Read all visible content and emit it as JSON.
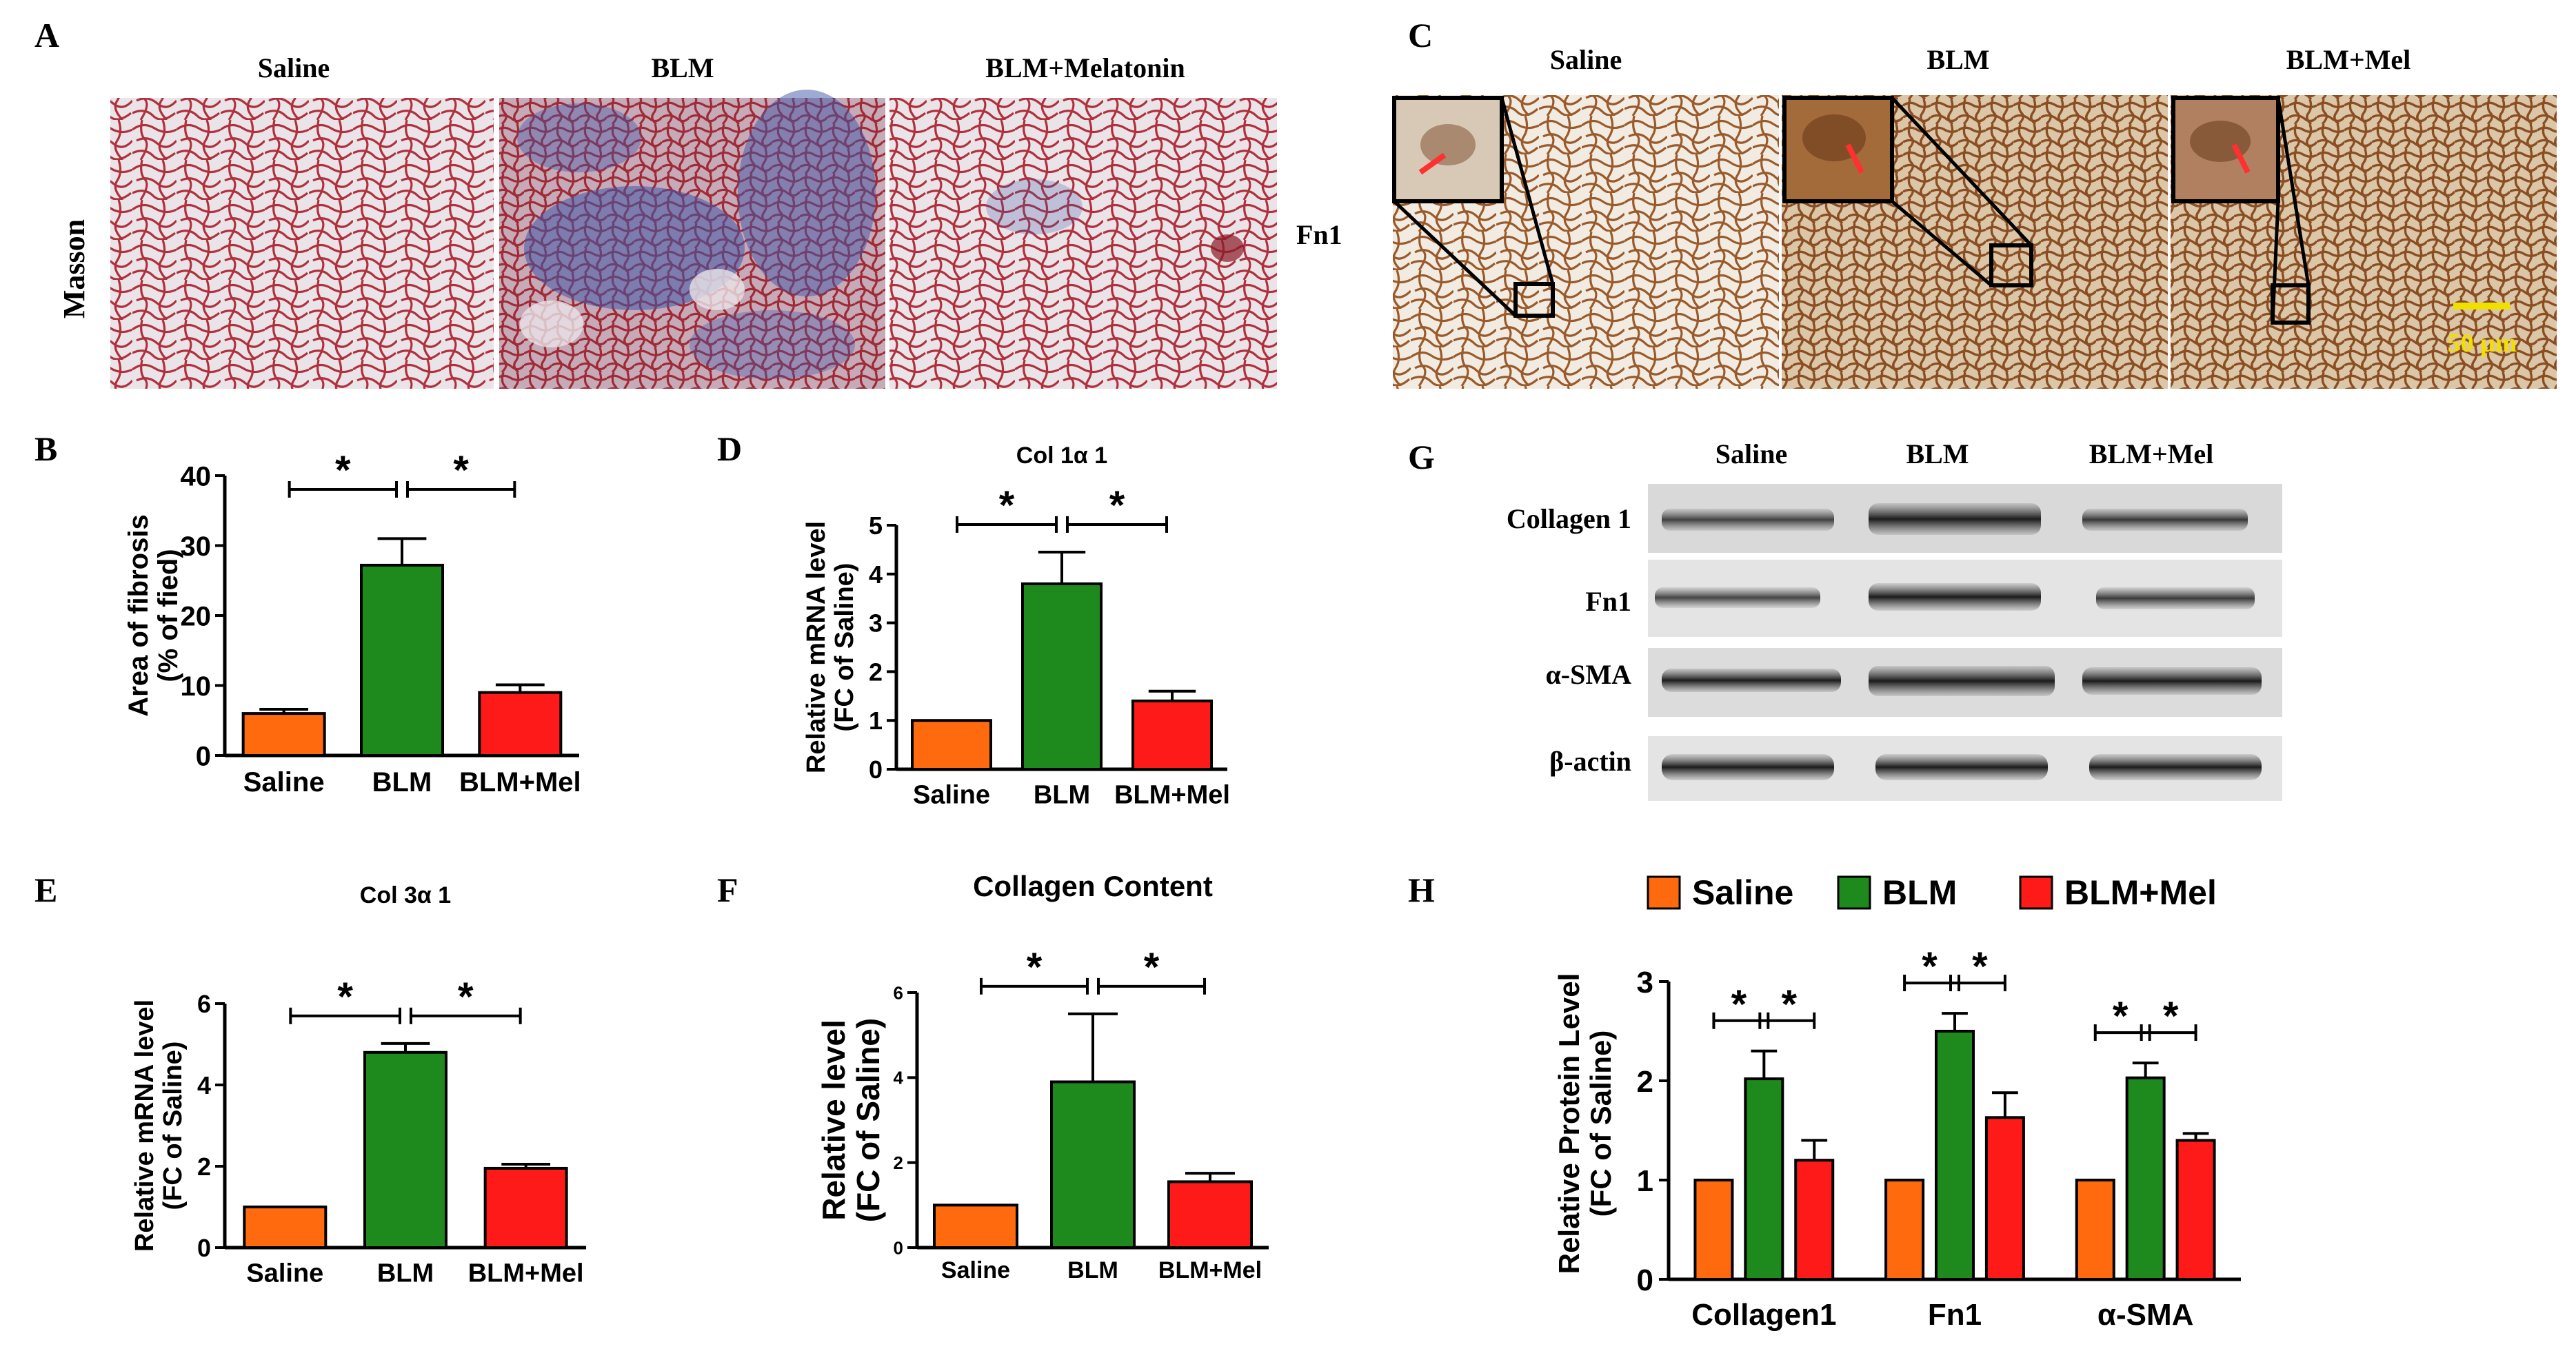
{
  "colors": {
    "saline": "#ff6a0e",
    "blm": "#1e8a1e",
    "blm_mel": "#ff1a1a",
    "masson_bg": "#eae3e8",
    "masson_tissue": "#b0313c",
    "masson_fibrosis": "#3f56a8",
    "ihc_bg": "#f1ebe2",
    "ihc_tissue": "#9a5a2a",
    "scalebar": "#f0e000"
  },
  "panel_a": {
    "letter": "A",
    "row_label": "Masson",
    "columns": [
      "Saline",
      "BLM",
      "BLM+Melatonin"
    ]
  },
  "panel_c": {
    "letter": "C",
    "row_label": "Fn1",
    "columns": [
      "Saline",
      "BLM",
      "BLM+Mel"
    ],
    "scale_bar": "50 μm"
  },
  "panel_g": {
    "letter": "G",
    "columns": [
      "Saline",
      "BLM",
      "BLM+Mel"
    ],
    "rows": [
      "Collagen 1",
      "Fn1",
      "α-SMA",
      "β-actin"
    ]
  },
  "chart_data": [
    {
      "panel": "B",
      "type": "bar",
      "title": "",
      "categories": [
        "Saline",
        "BLM",
        "BLM+Mel"
      ],
      "values": [
        6,
        27.2,
        9
      ],
      "errors": [
        0.6,
        3.8,
        1.1
      ],
      "ylabel": "Area of fibrosis\n(% of fied)",
      "ylim": [
        0,
        40
      ],
      "yticks": [
        0,
        10,
        20,
        30,
        40
      ],
      "significance": [
        "*",
        "*"
      ]
    },
    {
      "panel": "D",
      "type": "bar",
      "title": "Col 1α 1",
      "categories": [
        "Saline",
        "BLM",
        "BLM+Mel"
      ],
      "values": [
        1,
        3.8,
        1.4
      ],
      "errors": [
        0,
        0.65,
        0.2
      ],
      "ylabel": "Relative mRNA level\n(FC of Saline)",
      "ylim": [
        0,
        5
      ],
      "yticks": [
        0,
        1,
        2,
        3,
        4,
        5
      ],
      "significance": [
        "*",
        "*"
      ]
    },
    {
      "panel": "E",
      "type": "bar",
      "title": "Col 3α 1",
      "categories": [
        "Saline",
        "BLM",
        "BLM+Mel"
      ],
      "values": [
        1,
        4.8,
        1.95
      ],
      "errors": [
        0,
        0.22,
        0.1
      ],
      "ylabel": "Relative mRNA level\n(FC of Saline)",
      "ylim": [
        0,
        6
      ],
      "yticks": [
        0,
        2,
        4,
        6
      ],
      "significance": [
        "*",
        "*"
      ]
    },
    {
      "panel": "F",
      "type": "bar",
      "title": "Collagen Content",
      "categories": [
        "Saline",
        "BLM",
        "BLM+Mel"
      ],
      "values": [
        1,
        3.9,
        1.55
      ],
      "errors": [
        0,
        1.6,
        0.2
      ],
      "ylabel": "Relative level\n(FC of Saline)",
      "ylim": [
        0,
        6
      ],
      "yticks": [
        0,
        2,
        4,
        6
      ],
      "significance": [
        "*",
        "*"
      ]
    },
    {
      "panel": "H",
      "type": "bar",
      "title": "",
      "categories": [
        "Collagen1",
        "Fn1",
        "α-SMA"
      ],
      "series": [
        {
          "name": "Saline",
          "values": [
            1,
            1,
            1
          ],
          "errors": [
            0,
            0,
            0
          ]
        },
        {
          "name": "BLM",
          "values": [
            2.02,
            2.5,
            2.03
          ],
          "errors": [
            0.28,
            0.18,
            0.15
          ]
        },
        {
          "name": "BLM+Mel",
          "values": [
            1.2,
            1.63,
            1.4
          ],
          "errors": [
            0.2,
            0.25,
            0.07
          ]
        }
      ],
      "ylabel": "Relative Protein Level\n(FC of Saline)",
      "ylim": [
        0,
        3
      ],
      "yticks": [
        0,
        1,
        2,
        3
      ],
      "legend": "top",
      "significance": [
        "*",
        "*"
      ]
    }
  ]
}
